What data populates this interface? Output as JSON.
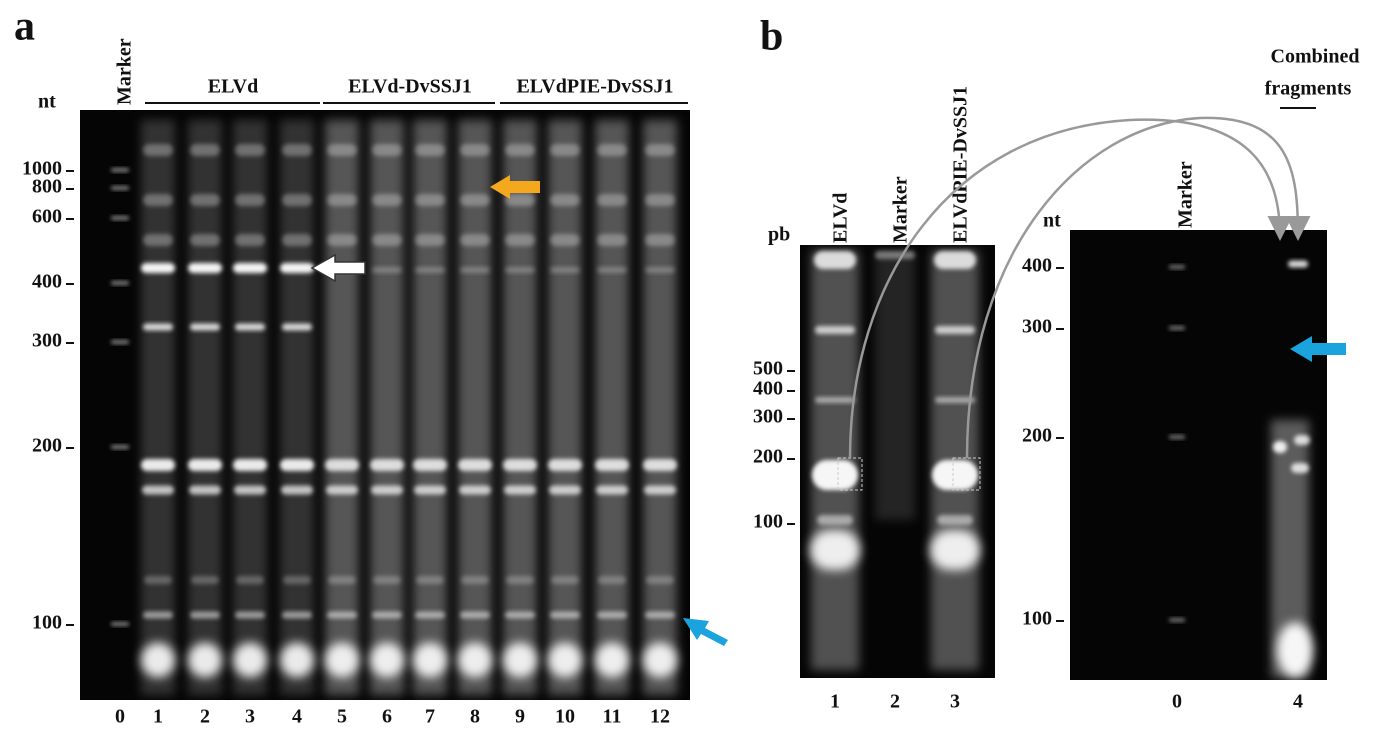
{
  "panel_a": {
    "letter": "a",
    "unit": "nt",
    "marker_header": "Marker",
    "groups": [
      "ELVd",
      "ELVd-DvSSJ1",
      "ELVdPIE-DvSSJ1"
    ],
    "size_markers": [
      "1000",
      "800",
      "600",
      "400",
      "300",
      "200",
      "100"
    ],
    "lane_numbers": [
      "0",
      "1",
      "2",
      "3",
      "4",
      "5",
      "6",
      "7",
      "8",
      "9",
      "10",
      "11",
      "12"
    ]
  },
  "panel_b": {
    "letter": "b",
    "unit": "pb",
    "lane_headers": [
      "ELVd",
      "Marker",
      "ELVdPIE-DvSSJ1"
    ],
    "size_markers": [
      "500",
      "400",
      "300",
      "200",
      "100"
    ],
    "lane_numbers": [
      "1",
      "2",
      "3"
    ]
  },
  "panel_b_right": {
    "unit": "nt",
    "marker_header": "Marker",
    "size_markers": [
      "400",
      "300",
      "200",
      "100"
    ],
    "lane_numbers": [
      "0",
      "4"
    ],
    "annotation": [
      "Combined",
      "fragments"
    ]
  }
}
